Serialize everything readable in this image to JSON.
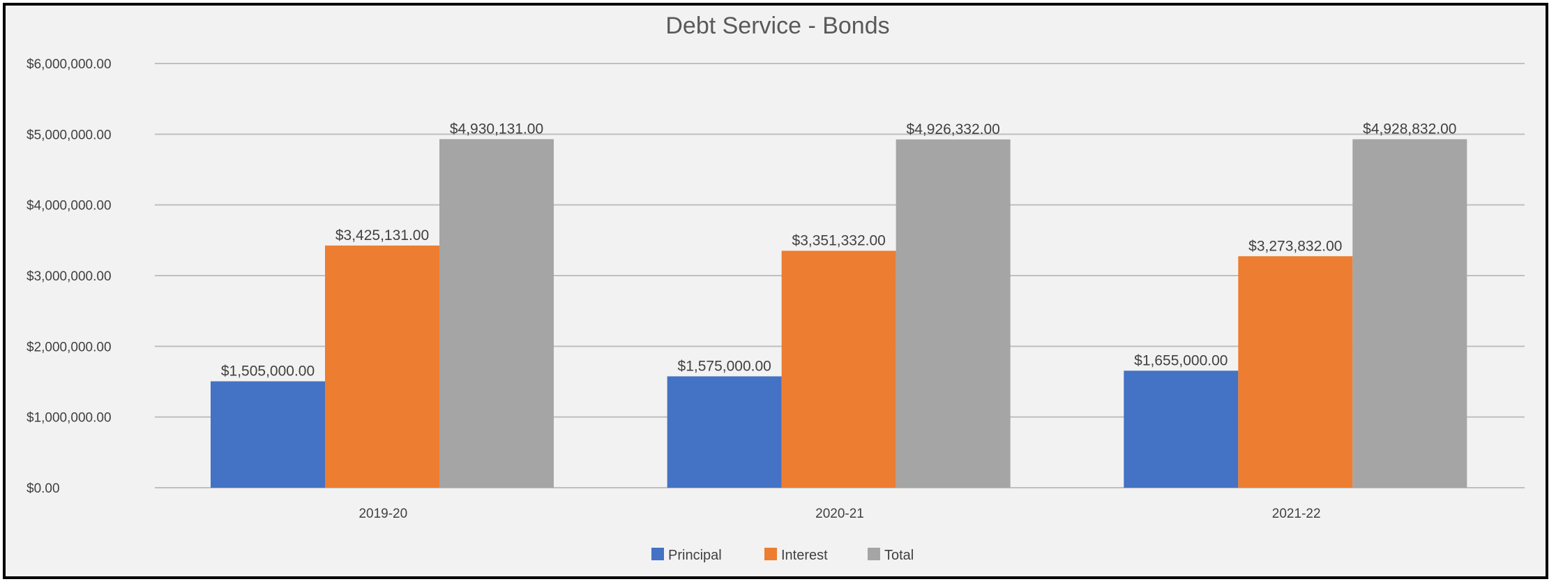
{
  "chart_data": {
    "type": "bar",
    "title": "Debt Service  - Bonds",
    "xlabel": "",
    "ylabel": "",
    "categories": [
      "2019-20",
      "2020-21",
      "2021-22"
    ],
    "series": [
      {
        "name": "Principal",
        "color": "#4472c4",
        "values": [
          1505000,
          1575000,
          1655000
        ],
        "labels": [
          "$1,505,000.00",
          "$1,575,000.00",
          "$1,655,000.00"
        ]
      },
      {
        "name": "Interest",
        "color": "#ed7d31",
        "values": [
          3425131,
          3351332,
          3273832
        ],
        "labels": [
          "$3,425,131.00",
          "$3,351,332.00",
          "$3,273,832.00"
        ]
      },
      {
        "name": "Total",
        "color": "#a5a5a5",
        "values": [
          4930131,
          4926332,
          4928832
        ],
        "labels": [
          "$4,930,131.00",
          "$4,926,332.00",
          "$4,928,832.00"
        ]
      }
    ],
    "ylim": [
      0,
      6000000
    ],
    "yticks": [
      0,
      1000000,
      2000000,
      3000000,
      4000000,
      5000000,
      6000000
    ],
    "ytick_labels": [
      "$0.00",
      "$1,000,000.00",
      "$2,000,000.00",
      "$3,000,000.00",
      "$4,000,000.00",
      "$5,000,000.00",
      "$6,000,000.00"
    ],
    "grid": true,
    "legend_position": "bottom",
    "data_labels": true
  }
}
